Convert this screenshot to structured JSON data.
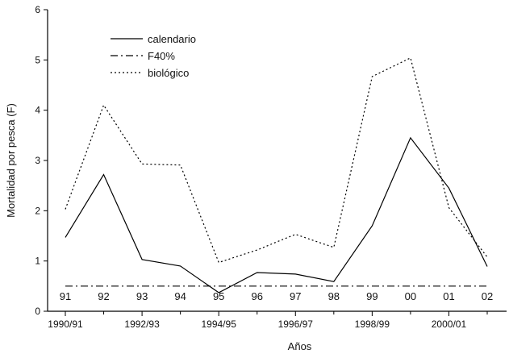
{
  "chart_data": {
    "type": "line",
    "xlabel": "Años",
    "ylabel": "Mortalidad por pesca (F)",
    "ylim": [
      0,
      6
    ],
    "yticks": [
      "0",
      "1",
      "2",
      "3",
      "4",
      "5",
      "6"
    ],
    "xticks": [
      "1990/91",
      "1992/93",
      "1994/95",
      "1996/97",
      "1998/99",
      "2000/01"
    ],
    "categories": [
      "91",
      "92",
      "93",
      "94",
      "95",
      "96",
      "97",
      "98",
      "99",
      "00",
      "01",
      "02"
    ],
    "legend_position": "top-left",
    "grid": false,
    "series": [
      {
        "name": "calendario",
        "style": "solid",
        "values": [
          1.47,
          2.72,
          1.03,
          0.9,
          0.37,
          0.77,
          0.74,
          0.59,
          1.7,
          3.45,
          2.45,
          0.89
        ]
      },
      {
        "name": "F40%",
        "style": "dashdot",
        "values": [
          0.5,
          0.5,
          0.5,
          0.5,
          0.5,
          0.5,
          0.5,
          0.5,
          0.5,
          0.5,
          0.5,
          0.5
        ]
      },
      {
        "name": "biológico",
        "style": "dotted",
        "values": [
          2.03,
          4.1,
          2.93,
          2.91,
          0.97,
          1.22,
          1.53,
          1.27,
          4.67,
          5.04,
          2.06,
          1.08
        ]
      }
    ],
    "colors": {
      "line": "#000000",
      "background": "#ffffff"
    }
  }
}
